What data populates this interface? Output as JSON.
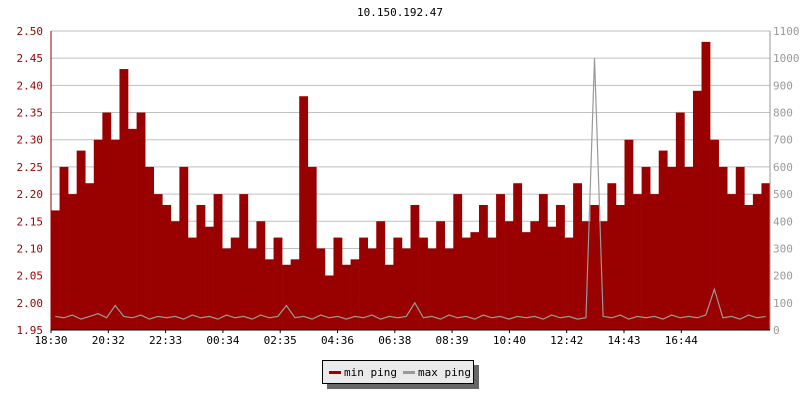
{
  "chart_data": {
    "type": "bar",
    "title": "10.150.192.47",
    "x_tick_labels": [
      "18:30",
      "20:32",
      "22:33",
      "00:34",
      "02:35",
      "04:36",
      "06:38",
      "08:39",
      "10:40",
      "12:42",
      "14:43",
      "16:44"
    ],
    "left_axis": {
      "ylim": [
        1.95,
        2.5
      ],
      "ticks": [
        "1.95",
        "2.00",
        "2.05",
        "2.10",
        "2.15",
        "2.20",
        "2.25",
        "2.30",
        "2.35",
        "2.40",
        "2.45",
        "2.50"
      ],
      "color": "#990000"
    },
    "right_axis": {
      "ylim": [
        0,
        1100
      ],
      "ticks": [
        "0",
        "100",
        "200",
        "300",
        "400",
        "500",
        "600",
        "700",
        "800",
        "900",
        "1000",
        "1100"
      ],
      "color": "#999999"
    },
    "grid": true,
    "legend_position": "bottom",
    "series": [
      {
        "name": "min ping",
        "axis": "left",
        "color": "#990000",
        "type": "bar",
        "values": [
          2.17,
          2.25,
          2.2,
          2.28,
          2.22,
          2.3,
          2.35,
          2.3,
          2.43,
          2.32,
          2.35,
          2.25,
          2.2,
          2.18,
          2.15,
          2.25,
          2.12,
          2.18,
          2.14,
          2.2,
          2.1,
          2.12,
          2.2,
          2.1,
          2.15,
          2.08,
          2.12,
          2.07,
          2.08,
          2.38,
          2.25,
          2.1,
          2.05,
          2.12,
          2.07,
          2.08,
          2.12,
          2.1,
          2.15,
          2.07,
          2.12,
          2.1,
          2.18,
          2.12,
          2.1,
          2.15,
          2.1,
          2.2,
          2.12,
          2.13,
          2.18,
          2.12,
          2.2,
          2.15,
          2.22,
          2.13,
          2.15,
          2.2,
          2.14,
          2.18,
          2.12,
          2.22,
          2.15,
          2.18,
          2.15,
          2.22,
          2.18,
          2.3,
          2.2,
          2.25,
          2.2,
          2.28,
          2.25,
          2.35,
          2.25,
          2.39,
          2.48,
          2.3,
          2.25,
          2.2,
          2.25,
          2.18,
          2.2,
          2.22
        ]
      },
      {
        "name": "max ping",
        "axis": "right",
        "color": "#999999",
        "type": "line",
        "values": [
          50,
          45,
          55,
          40,
          50,
          60,
          45,
          90,
          50,
          45,
          55,
          40,
          50,
          45,
          50,
          40,
          55,
          45,
          50,
          40,
          55,
          45,
          50,
          40,
          55,
          45,
          50,
          90,
          45,
          50,
          40,
          55,
          45,
          50,
          40,
          50,
          45,
          55,
          40,
          50,
          45,
          50,
          100,
          45,
          50,
          40,
          55,
          45,
          50,
          40,
          55,
          45,
          50,
          40,
          50,
          45,
          50,
          40,
          55,
          45,
          50,
          40,
          45,
          1000,
          50,
          45,
          55,
          40,
          50,
          45,
          50,
          40,
          55,
          45,
          50,
          45,
          55,
          150,
          45,
          50,
          40,
          55,
          45,
          50
        ]
      }
    ]
  }
}
